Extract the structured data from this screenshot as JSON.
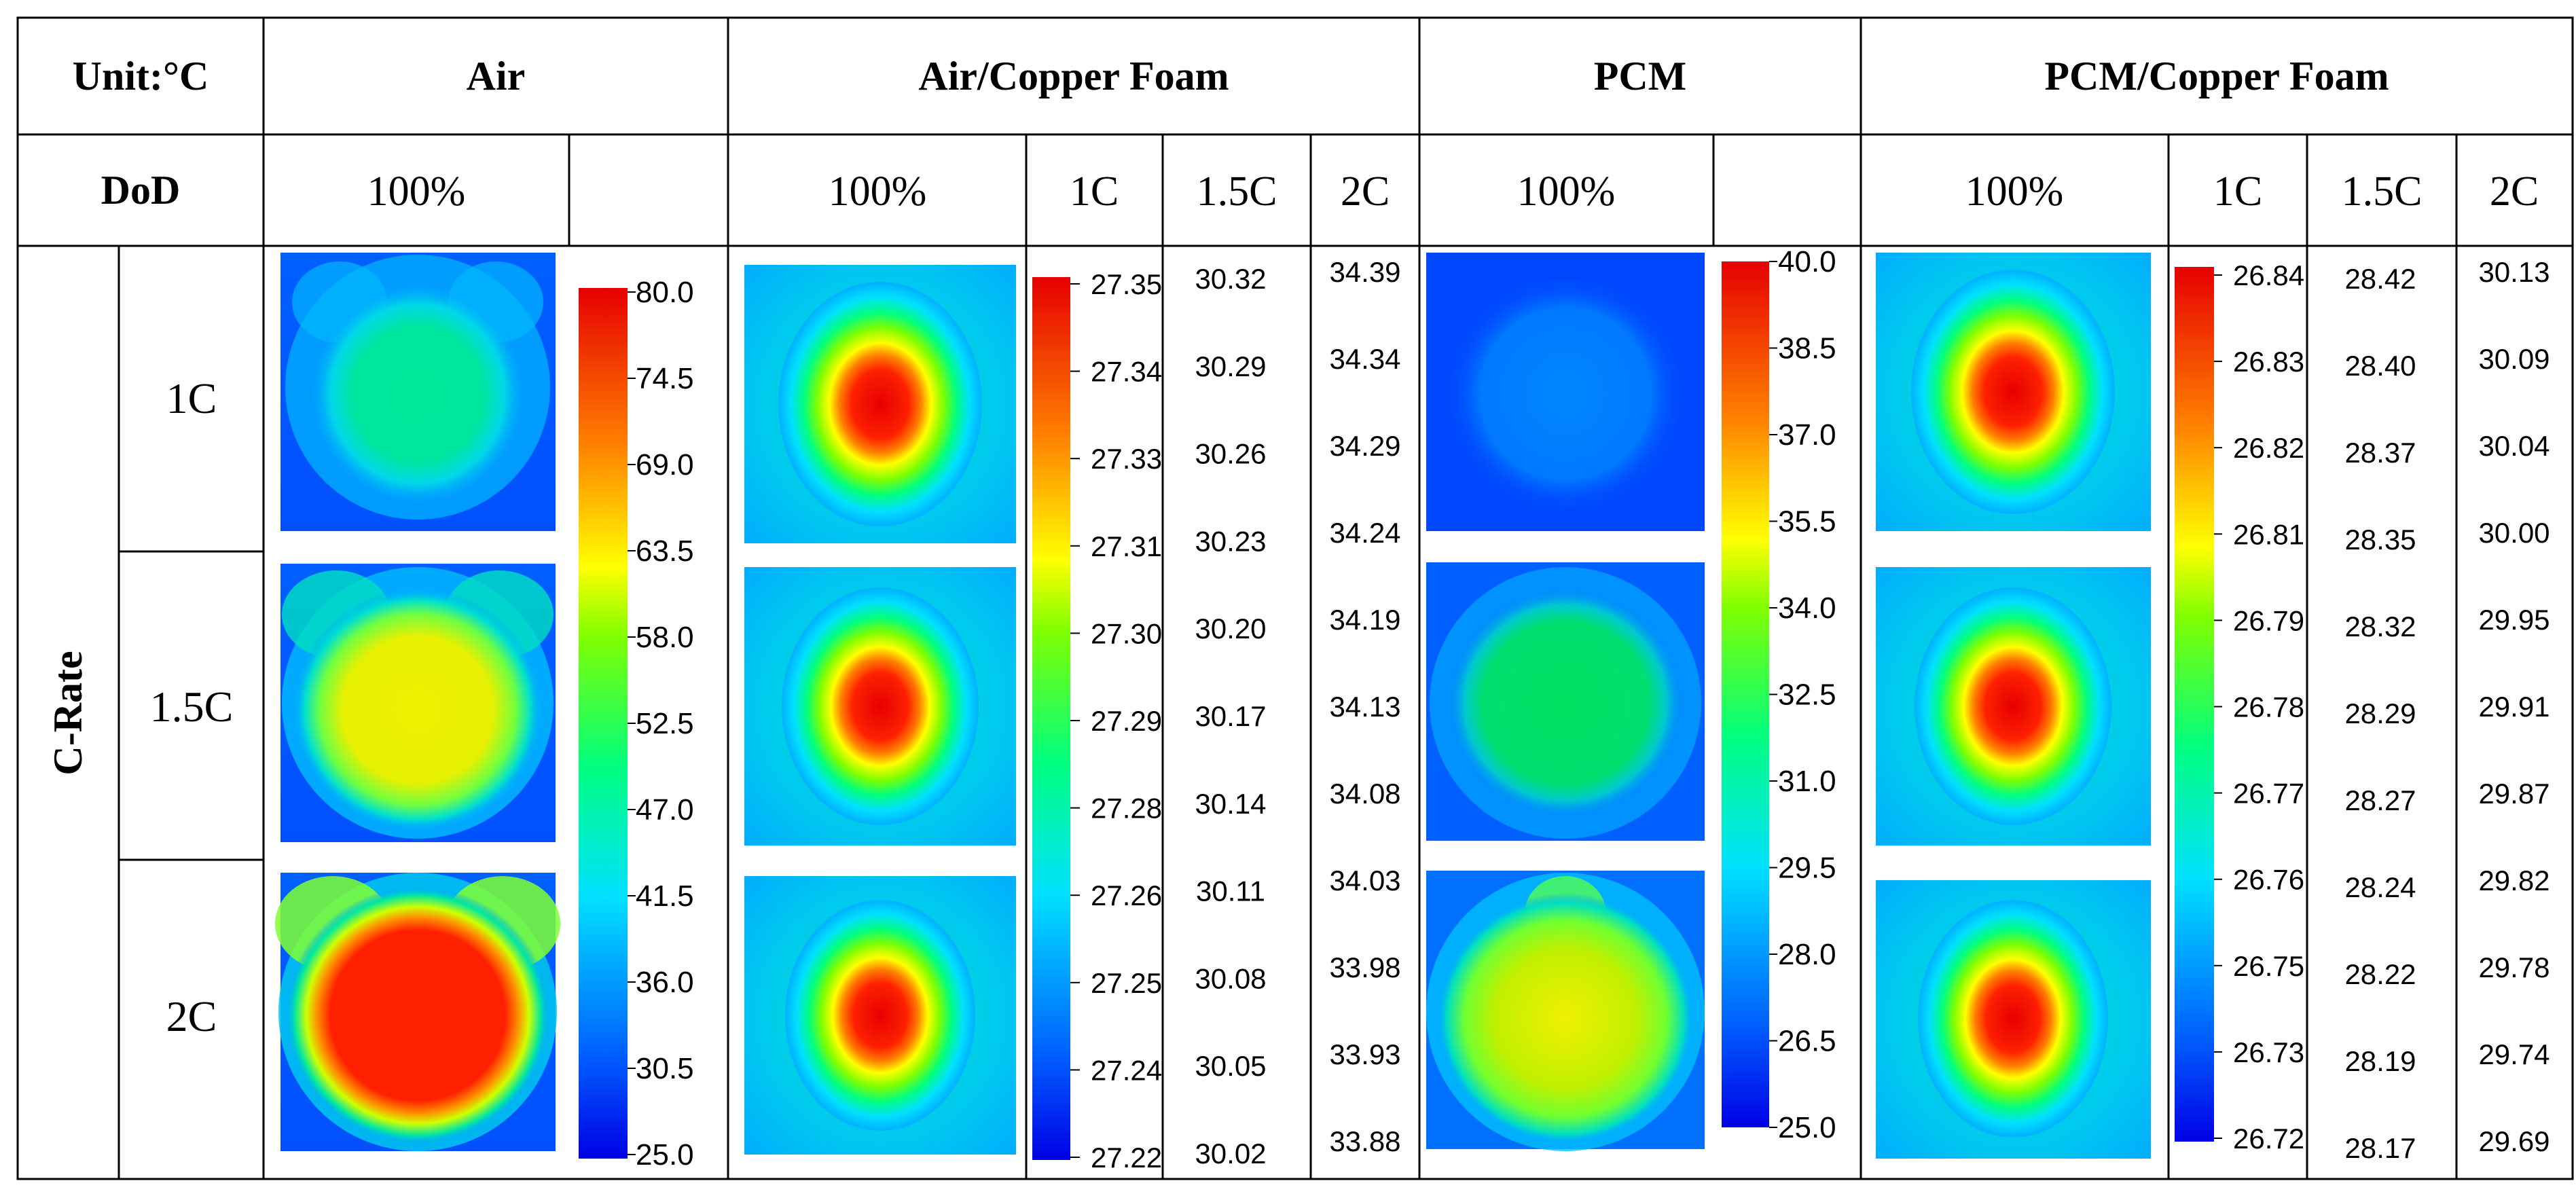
{
  "unit_label": "Unit:°C",
  "dod_label": "DoD",
  "crate_label": "C-Rate",
  "rows": [
    "1C",
    "1.5C",
    "2C"
  ],
  "groups": {
    "air": {
      "title": "Air",
      "sub": [
        "100%"
      ],
      "scale": [
        "80.0",
        "74.5",
        "69.0",
        "63.5",
        "58.0",
        "52.5",
        "47.0",
        "41.5",
        "36.0",
        "30.5",
        "25.0"
      ]
    },
    "air_cu": {
      "title": "Air/Copper Foam",
      "sub": [
        "100%",
        "1C",
        "1.5C",
        "2C"
      ],
      "scale_1c": [
        "27.35",
        "27.34",
        "27.33",
        "27.31",
        "27.30",
        "27.29",
        "27.28",
        "27.26",
        "27.25",
        "27.24",
        "27.22"
      ],
      "scale_15c": [
        "30.32",
        "30.29",
        "30.26",
        "30.23",
        "30.20",
        "30.17",
        "30.14",
        "30.11",
        "30.08",
        "30.05",
        "30.02"
      ],
      "scale_2c": [
        "34.39",
        "34.34",
        "34.29",
        "34.24",
        "34.19",
        "34.13",
        "34.08",
        "34.03",
        "33.98",
        "33.93",
        "33.88"
      ]
    },
    "pcm": {
      "title": "PCM",
      "sub": [
        "100%"
      ],
      "scale": [
        "40.0",
        "38.5",
        "37.0",
        "35.5",
        "34.0",
        "32.5",
        "31.0",
        "29.5",
        "28.0",
        "26.5",
        "25.0"
      ]
    },
    "pcm_cu": {
      "title": "PCM/Copper Foam",
      "sub": [
        "100%",
        "1C",
        "1.5C",
        "2C"
      ],
      "scale_1c": [
        "26.84",
        "26.83",
        "26.82",
        "26.81",
        "26.79",
        "26.78",
        "26.77",
        "26.76",
        "26.75",
        "26.73",
        "26.72"
      ],
      "scale_15c": [
        "28.42",
        "28.40",
        "28.37",
        "28.35",
        "28.32",
        "28.29",
        "28.27",
        "28.24",
        "28.22",
        "28.19",
        "28.17"
      ],
      "scale_2c": [
        "30.13",
        "30.09",
        "30.04",
        "30.00",
        "29.95",
        "29.91",
        "29.87",
        "29.82",
        "29.78",
        "29.74",
        "29.69"
      ]
    }
  },
  "colors": {
    "jet": [
      "#0000e6",
      "#0080ff",
      "#00e0ff",
      "#00ff80",
      "#80ff00",
      "#ffff00",
      "#ff8000",
      "#ff2000",
      "#e60000"
    ]
  }
}
